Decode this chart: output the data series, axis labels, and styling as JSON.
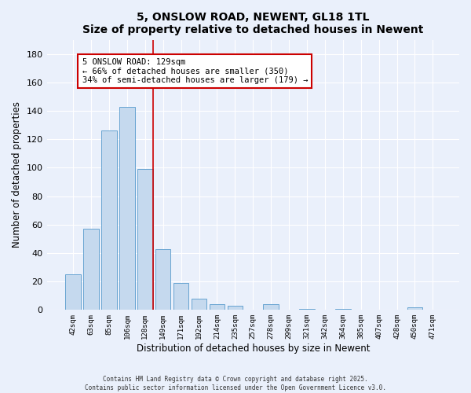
{
  "title": "5, ONSLOW ROAD, NEWENT, GL18 1TL",
  "subtitle": "Size of property relative to detached houses in Newent",
  "xlabel": "Distribution of detached houses by size in Newent",
  "ylabel": "Number of detached properties",
  "bar_labels": [
    "42sqm",
    "63sqm",
    "85sqm",
    "106sqm",
    "128sqm",
    "149sqm",
    "171sqm",
    "192sqm",
    "214sqm",
    "235sqm",
    "257sqm",
    "278sqm",
    "299sqm",
    "321sqm",
    "342sqm",
    "364sqm",
    "385sqm",
    "407sqm",
    "428sqm",
    "450sqm",
    "471sqm"
  ],
  "bar_values": [
    25,
    57,
    126,
    143,
    99,
    43,
    19,
    8,
    4,
    3,
    0,
    4,
    0,
    1,
    0,
    1,
    0,
    0,
    0,
    2,
    0
  ],
  "highlight_index": 4,
  "vline_color": "#cc0000",
  "bar_color": "#c5d9ee",
  "bar_edge_color": "#5599cc",
  "annotation_title": "5 ONSLOW ROAD: 129sqm",
  "annotation_line1": "← 66% of detached houses are smaller (350)",
  "annotation_line2": "34% of semi-detached houses are larger (179) →",
  "ylim": [
    0,
    190
  ],
  "yticks": [
    0,
    20,
    40,
    60,
    80,
    100,
    120,
    140,
    160,
    180
  ],
  "bg_color": "#eaf0fb",
  "grid_color": "#ffffff",
  "footer1": "Contains HM Land Registry data © Crown copyright and database right 2025.",
  "footer2": "Contains public sector information licensed under the Open Government Licence v3.0."
}
